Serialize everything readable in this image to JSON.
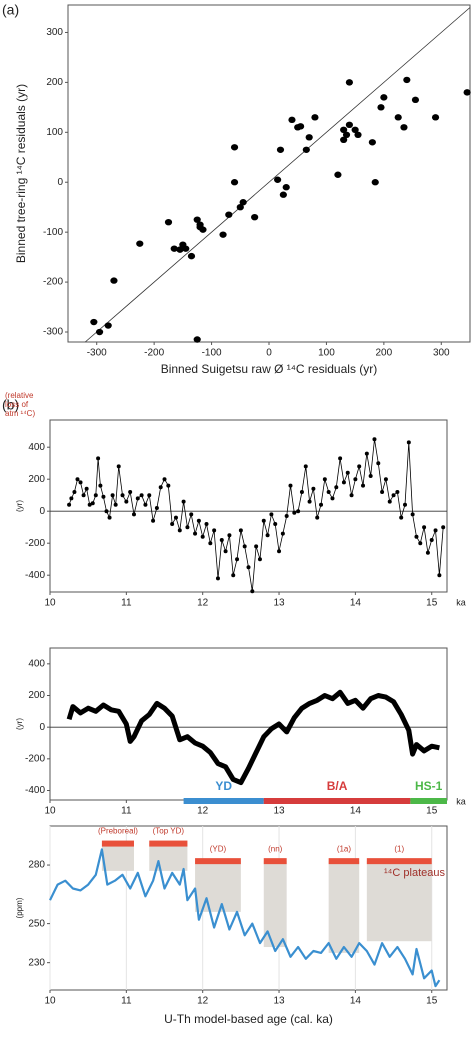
{
  "chart_data": [
    {
      "type": "scatter",
      "panel_label": "(a)",
      "xlabel": "Binned  Suigetsu raw Ø ¹⁴C residuals (yr)",
      "ylabel": "Binned tree-ring ¹⁴C residuals (yr)",
      "xlim": [
        -350,
        350
      ],
      "ylim": [
        -320,
        355
      ],
      "xticks": [
        -300,
        -200,
        -100,
        0,
        100,
        200,
        300
      ],
      "yticks": [
        -300,
        -200,
        -100,
        0,
        100,
        200,
        300
      ],
      "identity_line": true,
      "color": "#000000",
      "x": [
        -305,
        -295,
        -280,
        -270,
        -225,
        -175,
        -165,
        -155,
        -150,
        -145,
        -135,
        -125,
        -120,
        -120,
        -115,
        -125,
        -80,
        -70,
        -60,
        -60,
        -50,
        -45,
        -25,
        15,
        20,
        25,
        30,
        40,
        50,
        55,
        65,
        70,
        80,
        120,
        130,
        130,
        135,
        140,
        140,
        150,
        155,
        180,
        185,
        195,
        200,
        225,
        235,
        240,
        255,
        290,
        345
      ],
      "y": [
        -280,
        -300,
        -287,
        -197,
        -123,
        -80,
        -133,
        -135,
        -125,
        -133,
        -148,
        -75,
        -85,
        -90,
        -95,
        -315,
        -105,
        -65,
        0,
        70,
        -50,
        -40,
        -70,
        5,
        65,
        -25,
        -10,
        125,
        110,
        112,
        65,
        90,
        130,
        15,
        105,
        85,
        95,
        200,
        115,
        105,
        95,
        80,
        0,
        150,
        170,
        130,
        110,
        205,
        165,
        130,
        180
      ]
    },
    {
      "type": "line",
      "panel_label": "(b)",
      "ylabel": "(yr)",
      "annotation": [
        "(relative",
        "loss of",
        "atm ¹⁴C)"
      ],
      "x_unit": "ka",
      "xlim": [
        10,
        15.2
      ],
      "ylim": [
        -505,
        570
      ],
      "xticks": [
        10,
        11,
        12,
        13,
        14,
        15
      ],
      "yticks": [
        -400,
        -200,
        0,
        200,
        400
      ],
      "reference_line": 0,
      "color": "#000000",
      "line_width": 0.8,
      "markers": true,
      "x": [
        10.25,
        10.28,
        10.32,
        10.36,
        10.4,
        10.44,
        10.48,
        10.52,
        10.56,
        10.6,
        10.63,
        10.66,
        10.7,
        10.74,
        10.78,
        10.82,
        10.86,
        10.9,
        10.95,
        11.0,
        11.05,
        11.1,
        11.15,
        11.2,
        11.25,
        11.3,
        11.35,
        11.4,
        11.45,
        11.5,
        11.55,
        11.6,
        11.65,
        11.7,
        11.75,
        11.8,
        11.85,
        11.9,
        11.95,
        12.0,
        12.05,
        12.1,
        12.15,
        12.2,
        12.25,
        12.3,
        12.35,
        12.4,
        12.45,
        12.5,
        12.55,
        12.6,
        12.65,
        12.7,
        12.75,
        12.8,
        12.85,
        12.9,
        12.95,
        13.0,
        13.05,
        13.1,
        13.15,
        13.2,
        13.25,
        13.3,
        13.35,
        13.4,
        13.45,
        13.5,
        13.55,
        13.6,
        13.65,
        13.7,
        13.75,
        13.8,
        13.85,
        13.9,
        13.95,
        14.0,
        14.05,
        14.1,
        14.15,
        14.2,
        14.25,
        14.3,
        14.35,
        14.4,
        14.45,
        14.5,
        14.55,
        14.6,
        14.65,
        14.7,
        14.75,
        14.8,
        14.85,
        14.9,
        14.95,
        15.0,
        15.05,
        15.1,
        15.15
      ],
      "values": [
        40,
        80,
        120,
        200,
        180,
        100,
        140,
        40,
        50,
        100,
        330,
        160,
        90,
        0,
        -40,
        100,
        40,
        280,
        100,
        60,
        120,
        -20,
        80,
        100,
        40,
        100,
        -60,
        20,
        150,
        200,
        160,
        -80,
        -40,
        -120,
        60,
        -100,
        -20,
        -140,
        -60,
        -160,
        -80,
        -200,
        -120,
        -420,
        -180,
        -250,
        -150,
        -400,
        -300,
        -120,
        -220,
        -350,
        -500,
        -220,
        -300,
        -60,
        -150,
        -20,
        -80,
        -250,
        -140,
        -30,
        160,
        -10,
        0,
        120,
        280,
        60,
        140,
        -40,
        40,
        200,
        120,
        80,
        150,
        330,
        180,
        240,
        100,
        200,
        280,
        160,
        360,
        220,
        450,
        300,
        120,
        200,
        60,
        100,
        120,
        -40,
        40,
        430,
        -20,
        -160,
        -200,
        -100,
        -260,
        -180,
        -120,
        -400,
        -100
      ]
    },
    {
      "type": "line",
      "ylabel": "(yr)",
      "x_unit": "ka",
      "xlim": [
        10,
        15.2
      ],
      "ylim": [
        -460,
        500
      ],
      "xticks": [
        10,
        11,
        12,
        13,
        14,
        15
      ],
      "yticks": [
        -400,
        -200,
        0,
        200,
        400
      ],
      "reference_line": 0,
      "color": "#000000",
      "line_width": 5,
      "markers": false,
      "x": [
        10.25,
        10.3,
        10.4,
        10.5,
        10.6,
        10.7,
        10.8,
        10.9,
        11.0,
        11.05,
        11.1,
        11.2,
        11.3,
        11.4,
        11.5,
        11.6,
        11.7,
        11.8,
        11.9,
        12.0,
        12.1,
        12.2,
        12.3,
        12.4,
        12.5,
        12.6,
        12.7,
        12.8,
        12.9,
        13.0,
        13.1,
        13.2,
        13.3,
        13.4,
        13.5,
        13.6,
        13.7,
        13.8,
        13.9,
        14.0,
        14.1,
        14.2,
        14.3,
        14.4,
        14.5,
        14.6,
        14.7,
        14.75,
        14.8,
        14.9,
        15.0,
        15.1
      ],
      "values": [
        50,
        130,
        90,
        120,
        100,
        140,
        110,
        100,
        20,
        -90,
        -60,
        40,
        80,
        150,
        120,
        70,
        -80,
        -60,
        -100,
        -120,
        -160,
        -230,
        -250,
        -330,
        -350,
        -260,
        -160,
        -60,
        -10,
        20,
        -30,
        60,
        120,
        150,
        170,
        200,
        180,
        220,
        150,
        170,
        120,
        180,
        200,
        190,
        160,
        80,
        -20,
        -170,
        -110,
        -150,
        -120,
        -130
      ],
      "periods": [
        {
          "label": "YD",
          "start": 11.75,
          "end": 12.8,
          "color": "#3b8ed0"
        },
        {
          "label": "B/A",
          "start": 12.8,
          "end": 14.72,
          "color": "#d63c3c"
        },
        {
          "label": "HS-1",
          "start": 14.72,
          "end": 15.2,
          "color": "#4cb848"
        }
      ]
    },
    {
      "type": "line",
      "ylabel": "(ppm)",
      "xlabel": "U-Th model-based age (cal. ka)",
      "xlim": [
        10,
        15.2
      ],
      "ylim": [
        216,
        300
      ],
      "xticks": [
        10,
        11,
        12,
        13,
        14,
        15
      ],
      "yticks": [
        230,
        250,
        280
      ],
      "grid": true,
      "color": "#3a8fd0",
      "line_width": 2.2,
      "markers": false,
      "x": [
        10.0,
        10.1,
        10.2,
        10.3,
        10.4,
        10.5,
        10.6,
        10.68,
        10.75,
        10.85,
        10.95,
        11.05,
        11.15,
        11.25,
        11.35,
        11.42,
        11.5,
        11.6,
        11.7,
        11.75,
        11.8,
        11.9,
        11.95,
        12.05,
        12.15,
        12.25,
        12.35,
        12.45,
        12.55,
        12.65,
        12.75,
        12.85,
        12.95,
        13.05,
        13.15,
        13.25,
        13.35,
        13.45,
        13.55,
        13.65,
        13.75,
        13.85,
        13.95,
        14.05,
        14.15,
        14.25,
        14.35,
        14.45,
        14.55,
        14.65,
        14.75,
        14.8,
        14.9,
        15.0,
        15.05,
        15.1
      ],
      "values": [
        262,
        270,
        272,
        268,
        267,
        270,
        275,
        288,
        270,
        272,
        275,
        268,
        276,
        264,
        272,
        282,
        268,
        276,
        270,
        278,
        262,
        268,
        252,
        263,
        248,
        260,
        247,
        256,
        244,
        250,
        240,
        246,
        236,
        242,
        233,
        238,
        232,
        236,
        235,
        240,
        232,
        238,
        233,
        240,
        236,
        229,
        240,
        233,
        238,
        232,
        224,
        237,
        222,
        226,
        218,
        221
      ],
      "plateau_legend": "¹⁴C plateaus",
      "plateau_color": "#e8503a",
      "plateau_fill": "#dedbd6",
      "plateaus": [
        {
          "label": "(Preboreal)",
          "start": 10.68,
          "end": 11.1,
          "top": 291,
          "bottom": 277
        },
        {
          "label": "(Top YD)",
          "start": 11.3,
          "end": 11.8,
          "top": 291,
          "bottom": 277
        },
        {
          "label": "(YD)",
          "start": 11.9,
          "end": 12.5,
          "top": 282,
          "bottom": 256
        },
        {
          "label": "(nn)",
          "start": 12.8,
          "end": 13.1,
          "top": 282,
          "bottom": 238
        },
        {
          "label": "(1a)",
          "start": 13.65,
          "end": 14.05,
          "top": 282,
          "bottom": 235
        },
        {
          "label": "(1)",
          "start": 14.15,
          "end": 15.0,
          "top": 282,
          "bottom": 241
        }
      ]
    }
  ]
}
